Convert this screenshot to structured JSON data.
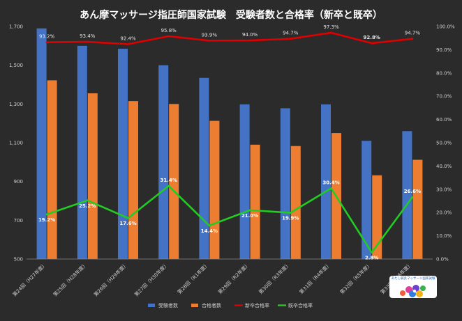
{
  "chart_data": {
    "type": "bar",
    "title": "あん摩マッサージ指圧師国家試験　受験者数と合格率（新卒と既卒）",
    "categories": [
      "第24回（H27年度）",
      "第25回（H28年度）",
      "第26回（H29年度）",
      "第27回（H30年度）",
      "第28回（R1年度）",
      "第29回（R2年度）",
      "第30回（R3年度）",
      "第31回（R4年度）",
      "第32回（R5年度）",
      "第33回（R6年度）"
    ],
    "series": [
      {
        "name": "受験者数",
        "type": "bar",
        "axis": "left",
        "color": "#4472c4",
        "values": [
          1690,
          1600,
          1585,
          1500,
          1435,
          1298,
          1278,
          1298,
          1110,
          1160
        ]
      },
      {
        "name": "合格者数",
        "type": "bar",
        "axis": "left",
        "color": "#ed7d31",
        "values": [
          1422,
          1355,
          1315,
          1300,
          1213,
          1090,
          1083,
          1150,
          932,
          1012
        ]
      },
      {
        "name": "新卒合格率",
        "type": "line",
        "axis": "right",
        "color": "#e00000",
        "values": [
          93.2,
          93.4,
          92.4,
          95.8,
          93.9,
          94.0,
          94.7,
          97.3,
          92.8,
          94.7
        ],
        "labels": [
          "93.2%",
          "93.4%",
          "92.4%",
          "95.8%",
          "93.9%",
          "94.0%",
          "94.7%",
          "97.3%",
          "92.8%",
          "94.7%"
        ]
      },
      {
        "name": "既卒合格率",
        "type": "line",
        "axis": "right",
        "color": "#22cc22",
        "values": [
          19.2,
          25.2,
          17.6,
          31.4,
          14.4,
          21.0,
          19.9,
          30.4,
          2.8,
          26.6
        ],
        "labels": [
          "19.2%",
          "25.2%",
          "17.6%",
          "31.4%",
          "14.4%",
          "21.0%",
          "19.9%",
          "30.4%",
          "2.8%",
          "26.6%"
        ]
      }
    ],
    "yleft": {
      "ylim": [
        500,
        1700
      ],
      "ticks": [
        "500",
        "700",
        "900",
        "1,100",
        "1,300",
        "1,500",
        "1,700"
      ],
      "tick_values": [
        500,
        700,
        900,
        1100,
        1300,
        1500,
        1700
      ]
    },
    "yright": {
      "ylim": [
        0,
        100
      ],
      "ticks": [
        "0.0%",
        "10.0%",
        "20.0%",
        "30.0%",
        "40.0%",
        "50.0%",
        "60.0%",
        "70.0%",
        "80.0%",
        "90.0%",
        "100.0%"
      ],
      "tick_values": [
        0,
        10,
        20,
        30,
        40,
        50,
        60,
        70,
        80,
        90,
        100
      ]
    },
    "grid": false,
    "legend_position": "bottom"
  },
  "colors": {
    "background": "#2b2b2b"
  },
  "logo": {
    "icon": "flower-logo-icon",
    "text": "あたし鍼灸マッサージ国家試験"
  }
}
